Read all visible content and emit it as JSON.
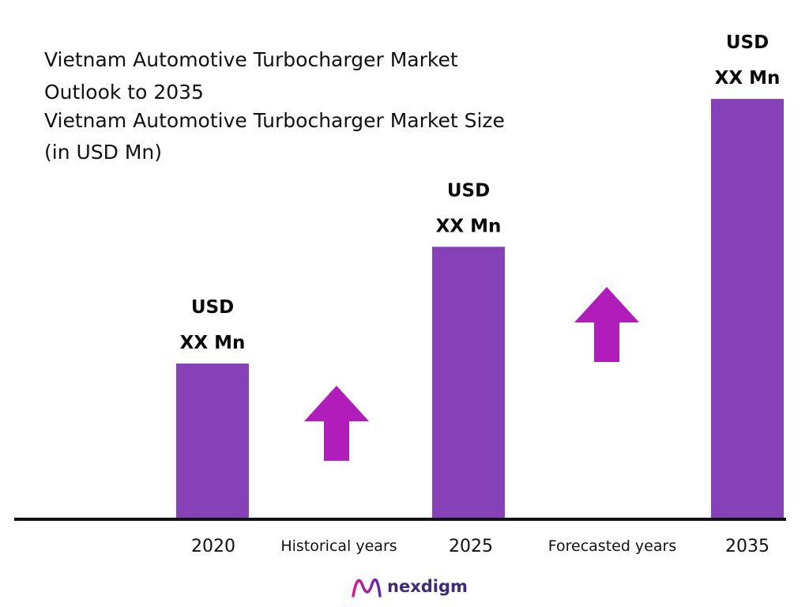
{
  "title": {
    "line1": "Vietnam Automotive Turbocharger Market",
    "line2": "Outlook to 2035",
    "line3": "Vietnam Automotive Turbocharger Market Size",
    "line4": "(in USD Mn)"
  },
  "chart_data": {
    "type": "bar",
    "categories": [
      "2020",
      "2025",
      "2035"
    ],
    "values": [
      1,
      1.75,
      2.7
    ],
    "value_labels": [
      [
        "USD",
        "XX Mn"
      ],
      [
        "USD",
        "XX Mn"
      ],
      [
        "USD",
        "XX Mn"
      ]
    ],
    "periods": [
      "Historical years",
      "Forecasted years"
    ],
    "grid": false,
    "colors": {
      "bar": "#8641b9",
      "arrow": "#b11dbb",
      "axis": "#111111"
    }
  },
  "brand": {
    "name": "nexdigm",
    "icon": "nexdigm-logo-icon"
  }
}
